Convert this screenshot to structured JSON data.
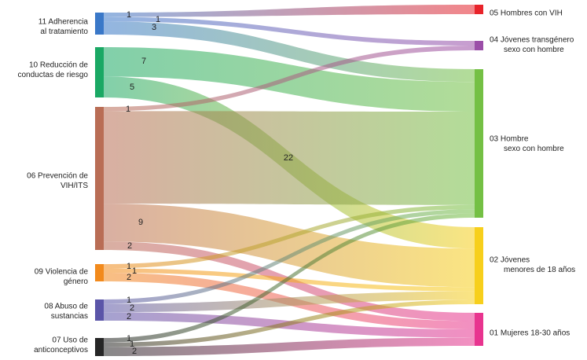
{
  "chart_data": {
    "type": "sankey",
    "sources": [
      {
        "id": "s11",
        "lines": [
          "11 Adherencia",
          "al tratamiento"
        ],
        "color": "#3a78c8"
      },
      {
        "id": "s10",
        "lines": [
          "10 Reducción de",
          "conductas de riesgo"
        ],
        "color": "#1aa864"
      },
      {
        "id": "s06",
        "lines": [
          "06 Prevención de",
          "VIH/ITS"
        ],
        "color": "#b96d55"
      },
      {
        "id": "s09",
        "lines": [
          "09 Violencia de",
          "género"
        ],
        "color": "#f28a1c"
      },
      {
        "id": "s08",
        "lines": [
          "08 Abuso de",
          "sustancias"
        ],
        "color": "#5b55a8"
      },
      {
        "id": "s07",
        "lines": [
          "07 Uso de",
          "anticonceptivos"
        ],
        "color": "#262626"
      }
    ],
    "targets": [
      {
        "id": "t05",
        "lines": [
          "05 Hombres con VIH"
        ],
        "color": "#e8232a"
      },
      {
        "id": "t04",
        "lines": [
          "04  Jóvenes transgénero",
          "sexo con hombre"
        ],
        "color": "#9b4ea8"
      },
      {
        "id": "t03",
        "lines": [
          "03 Hombre",
          "sexo con hombre"
        ],
        "color": "#74c044"
      },
      {
        "id": "t02",
        "lines": [
          "02  Jóvenes",
          "menores de 18 años"
        ],
        "color": "#f7cf1c"
      },
      {
        "id": "t01",
        "lines": [
          "01 Mujeres 18-30 años"
        ],
        "color": "#e8348f"
      }
    ],
    "links": [
      {
        "source": "s11",
        "target": "t05",
        "value": 1,
        "label": "1"
      },
      {
        "source": "s11",
        "target": "t04",
        "value": 1,
        "label": "1"
      },
      {
        "source": "s11",
        "target": "t03",
        "value": 3,
        "label": "3"
      },
      {
        "source": "s10",
        "target": "t03",
        "value": 7,
        "label": "7"
      },
      {
        "source": "s10",
        "target": "t02",
        "value": 5,
        "label": "5"
      },
      {
        "source": "s06",
        "target": "t04",
        "value": 1,
        "label": "1"
      },
      {
        "source": "s06",
        "target": "t03",
        "value": 22,
        "label": "22"
      },
      {
        "source": "s06",
        "target": "t02",
        "value": 9,
        "label": "9"
      },
      {
        "source": "s06",
        "target": "t01",
        "value": 2,
        "label": "2"
      },
      {
        "source": "s09",
        "target": "t03",
        "value": 1,
        "label": "1"
      },
      {
        "source": "s09",
        "target": "t02",
        "value": 1,
        "label": "1"
      },
      {
        "source": "s09",
        "target": "t01",
        "value": 2,
        "label": "2"
      },
      {
        "source": "s08",
        "target": "t03",
        "value": 1,
        "label": "1"
      },
      {
        "source": "s08",
        "target": "t02",
        "value": 2,
        "label": "2"
      },
      {
        "source": "s08",
        "target": "t01",
        "value": 2,
        "label": "2"
      },
      {
        "source": "s07",
        "target": "t03",
        "value": 1,
        "label": "1"
      },
      {
        "source": "s07",
        "target": "t02",
        "value": 1,
        "label": "1"
      },
      {
        "source": "s07",
        "target": "t01",
        "value": 2,
        "label": "2"
      }
    ]
  }
}
